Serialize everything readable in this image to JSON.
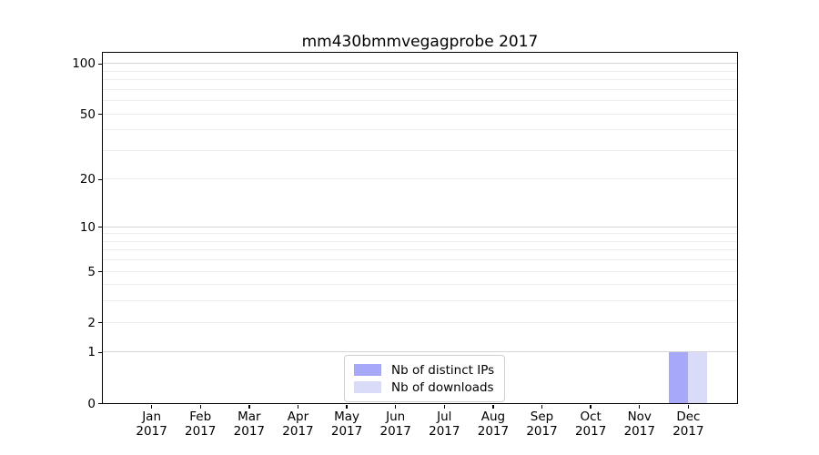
{
  "figure": {
    "background": "#ffffff"
  },
  "chart_data": {
    "type": "bar",
    "title": "mm430bmmvegagprobe 2017",
    "categories": [
      "Jan 2017",
      "Feb 2017",
      "Mar 2017",
      "Apr 2017",
      "May 2017",
      "Jun 2017",
      "Jul 2017",
      "Aug 2017",
      "Sep 2017",
      "Oct 2017",
      "Nov 2017",
      "Dec 2017"
    ],
    "series": [
      {
        "name": "Nb of distinct IPs",
        "color": "#a8a8f8",
        "values": [
          0,
          0,
          0,
          0,
          0,
          0,
          0,
          0,
          0,
          0,
          0,
          1
        ]
      },
      {
        "name": "Nb of downloads",
        "color": "#dadaf9",
        "values": [
          0,
          0,
          0,
          0,
          0,
          0,
          0,
          0,
          0,
          0,
          0,
          1
        ]
      }
    ],
    "xlabel": "",
    "ylabel": "",
    "yscale": "log1p",
    "ylim": [
      0,
      116
    ],
    "yticks": [
      0,
      1,
      2,
      5,
      10,
      20,
      50,
      100
    ],
    "major_gridlines": [
      1,
      10,
      100
    ],
    "minor_gridlines": [
      2,
      3,
      4,
      5,
      6,
      7,
      8,
      9,
      20,
      30,
      40,
      50,
      60,
      70,
      80,
      90
    ],
    "grid": true,
    "legend_position": "lower center",
    "colors": {
      "major_grid": "#d4d4d4",
      "minor_grid": "#ededed",
      "spine": "#000000",
      "text": "#000000"
    }
  }
}
